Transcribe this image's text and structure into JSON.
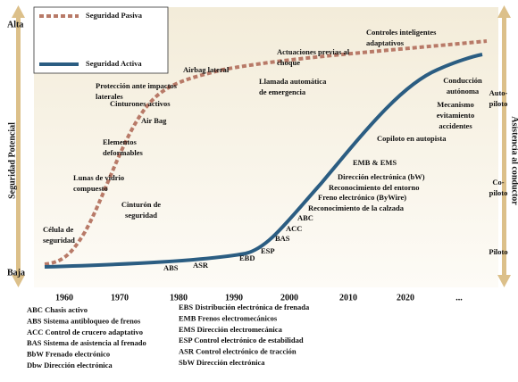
{
  "axis": {
    "y_high": "Alta",
    "y_low": "Baja",
    "y_label": "Seguridad Potencial",
    "y2_label": "Asistencia al conductor",
    "y2_levels": [
      [
        "Auto-",
        "piloto"
      ],
      [
        "Co-",
        "piloto"
      ],
      [
        "Piloto"
      ]
    ]
  },
  "x_ticks": [
    1960,
    1970,
    1980,
    1990,
    2000,
    2010,
    2020,
    "..."
  ],
  "legend": [
    "Seguridad Pasiva",
    "Seguridad Activa"
  ],
  "passive_milestones": [
    [
      "Célula de",
      "seguridad"
    ],
    [
      "Lunas de vidrio",
      "compuesto"
    ],
    [
      "Cinturón de",
      "seguridad"
    ],
    [
      "Elementos",
      "deformables"
    ],
    [
      "Air Bag"
    ],
    [
      "Cinturones activos"
    ],
    [
      "Protección ante impactos",
      "laterales"
    ],
    [
      "Airbag lateral"
    ],
    [
      "Actuaciones previas al",
      "choque"
    ],
    [
      "Llamada automática",
      "de emergencia"
    ],
    [
      "Controles inteligentes",
      "adaptativos"
    ]
  ],
  "active_milestones": [
    [
      "ABS"
    ],
    [
      "ASR"
    ],
    [
      "EBD"
    ],
    [
      "ESP"
    ],
    [
      "BAS"
    ],
    [
      "ACC"
    ],
    [
      "ABC"
    ],
    [
      "Reconocimiento de la calzada"
    ],
    [
      "Freno electrónico (ByWire)"
    ],
    [
      "Reconocimiento del entorno"
    ],
    [
      "Dirección electrónica (bW)"
    ],
    [
      "EMB & EMS"
    ],
    [
      "Copiloto en autopista"
    ],
    [
      "Mecanismo",
      "evitamiento",
      "accidentes"
    ],
    [
      "Conducción",
      "autónoma"
    ]
  ],
  "glossary_left": [
    "ABC Chasis activo",
    "ABS Sistema antibloqueo de frenos",
    "ACC Control de crucero adaptativo",
    "BAS Sistema de asistencia al frenado",
    "BbW Frenado electrónico",
    "Dbw Dirección electrónica"
  ],
  "glossary_right": [
    "EBS Distribución electrónica de frenada",
    "EMB Frenos electromecánicos",
    "EMS Dirección electromecánica",
    "ESP Control electrónico de estabilidad",
    "ASR Control electrónico de tracción",
    "SbW Dirección electrónica"
  ]
}
